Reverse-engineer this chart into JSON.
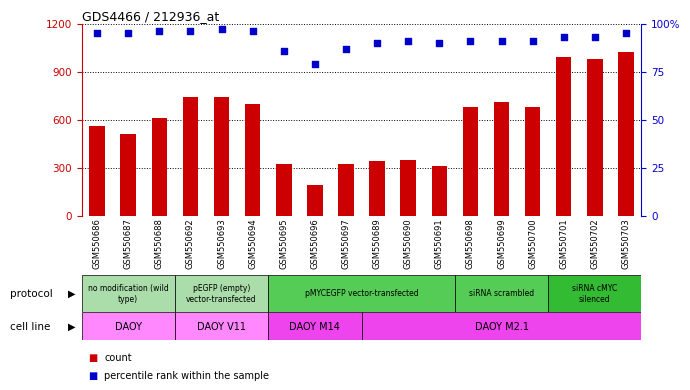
{
  "title": "GDS4466 / 212936_at",
  "samples": [
    "GSM550686",
    "GSM550687",
    "GSM550688",
    "GSM550692",
    "GSM550693",
    "GSM550694",
    "GSM550695",
    "GSM550696",
    "GSM550697",
    "GSM550689",
    "GSM550690",
    "GSM550691",
    "GSM550698",
    "GSM550699",
    "GSM550700",
    "GSM550701",
    "GSM550702",
    "GSM550703"
  ],
  "bar_values": [
    560,
    510,
    610,
    740,
    740,
    700,
    320,
    190,
    320,
    340,
    350,
    310,
    680,
    710,
    680,
    990,
    980,
    1020
  ],
  "pct_values": [
    95,
    95,
    96,
    96,
    97,
    96,
    86,
    79,
    87,
    90,
    91,
    90,
    91,
    91,
    91,
    93,
    93,
    95
  ],
  "bar_color": "#cc0000",
  "pct_color": "#0000cc",
  "ylim_left": [
    0,
    1200
  ],
  "ylim_right": [
    0,
    100
  ],
  "yticks_left": [
    0,
    300,
    600,
    900,
    1200
  ],
  "yticks_right": [
    0,
    25,
    50,
    75,
    100
  ],
  "background_color": "#ffffff",
  "protocol_groups": [
    {
      "label": "no modification (wild\ntype)",
      "start": 0,
      "end": 3,
      "color": "#aaddaa"
    },
    {
      "label": "pEGFP (empty)\nvector-transfected",
      "start": 3,
      "end": 6,
      "color": "#aaddaa"
    },
    {
      "label": "pMYCEGFP vector-transfected",
      "start": 6,
      "end": 12,
      "color": "#55cc55"
    },
    {
      "label": "siRNA scrambled",
      "start": 12,
      "end": 15,
      "color": "#55cc55"
    },
    {
      "label": "siRNA cMYC\nsilenced",
      "start": 15,
      "end": 18,
      "color": "#33bb33"
    }
  ],
  "cell_line_groups": [
    {
      "label": "DAOY",
      "start": 0,
      "end": 3,
      "color": "#ff88ff"
    },
    {
      "label": "DAOY V11",
      "start": 3,
      "end": 6,
      "color": "#ff88ff"
    },
    {
      "label": "DAOY M14",
      "start": 6,
      "end": 9,
      "color": "#ee44ee"
    },
    {
      "label": "DAOY M2.1",
      "start": 9,
      "end": 18,
      "color": "#ee44ee"
    }
  ],
  "legend_count_color": "#cc0000",
  "legend_pct_color": "#0000cc",
  "bar_width": 0.5,
  "xlabel_area_color": "#dddddd"
}
